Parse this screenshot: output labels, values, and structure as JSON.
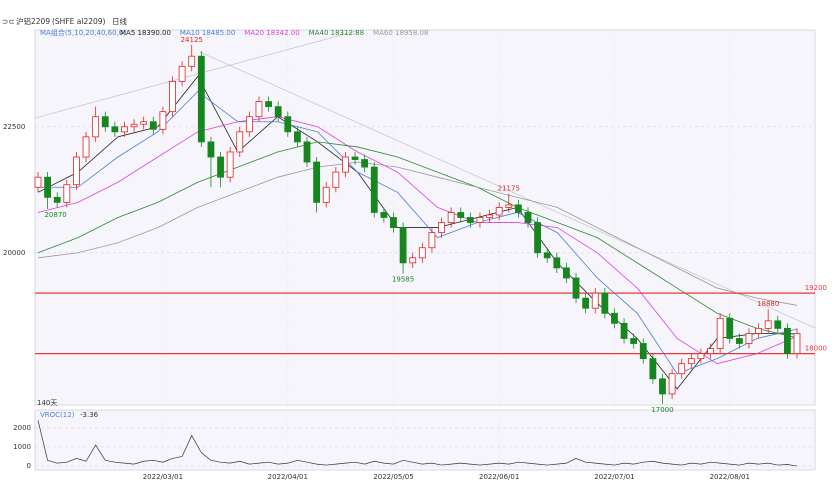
{
  "header": {
    "symbol": "沪铝2209",
    "exchange": "(SHFE al2209)",
    "period": "日线"
  },
  "chart_data": [
    {
      "type": "candlestick",
      "title": "MA组合(5,10,20,40,60,0)",
      "note": "140天",
      "categories": [
        null,
        null,
        null,
        null,
        null,
        null,
        null,
        null,
        null,
        null,
        null,
        null,
        null,
        "2022/03/01",
        null,
        null,
        null,
        null,
        null,
        null,
        null,
        null,
        null,
        null,
        null,
        null,
        "2022/04/01",
        null,
        null,
        null,
        null,
        null,
        null,
        null,
        null,
        null,
        null,
        "2022/05/05",
        null,
        null,
        null,
        null,
        null,
        null,
        null,
        null,
        null,
        null,
        "2022/06/01",
        null,
        null,
        null,
        null,
        null,
        null,
        null,
        null,
        null,
        null,
        null,
        "2022/07/01",
        null,
        null,
        null,
        null,
        null,
        null,
        null,
        null,
        null,
        null,
        null,
        "2022/08/01",
        null,
        null,
        null,
        null,
        null,
        null,
        null
      ],
      "open": [
        21300,
        21500,
        21100,
        21000,
        21350,
        21900,
        22300,
        22700,
        22500,
        22400,
        22500,
        22550,
        22600,
        22450,
        22800,
        23400,
        23700,
        23900,
        22200,
        21900,
        21500,
        22000,
        22400,
        22700,
        23000,
        22900,
        22700,
        22400,
        22200,
        21800,
        21000,
        21300,
        21600,
        21900,
        21850,
        21700,
        20800,
        20700,
        20500,
        19800,
        19900,
        20100,
        20400,
        20600,
        20800,
        20700,
        20600,
        20700,
        20750,
        20900,
        20950,
        20800,
        20600,
        20000,
        19900,
        19700,
        19500,
        19100,
        18900,
        19200,
        18800,
        18600,
        18300,
        18200,
        17900,
        17500,
        17200,
        17600,
        17800,
        17900,
        18000,
        18100,
        18700,
        18300,
        18200,
        18400,
        18500,
        18650,
        18500,
        18000
      ],
      "high": [
        21600,
        21600,
        21200,
        21450,
        22000,
        22400,
        22900,
        22800,
        22600,
        22600,
        22650,
        22700,
        22700,
        22900,
        23500,
        23800,
        24125,
        24000,
        22300,
        22000,
        22100,
        22500,
        22800,
        23100,
        23100,
        23000,
        22800,
        22500,
        22300,
        21900,
        21400,
        21700,
        22000,
        22000,
        21950,
        21800,
        20900,
        20800,
        20600,
        20000,
        20200,
        20500,
        20700,
        20900,
        20900,
        20800,
        20800,
        20850,
        21000,
        21175,
        21050,
        20900,
        20700,
        20100,
        20000,
        19800,
        19600,
        19200,
        19300,
        19300,
        18900,
        18700,
        18400,
        18300,
        18000,
        17600,
        17700,
        17900,
        18000,
        18100,
        18200,
        18800,
        18800,
        18400,
        18500,
        18600,
        18880,
        18750,
        18600,
        18500
      ],
      "low": [
        21200,
        20870,
        20900,
        20900,
        21250,
        21800,
        22200,
        22400,
        22300,
        22300,
        22400,
        22450,
        22350,
        22350,
        22700,
        23300,
        23600,
        22100,
        21300,
        21300,
        21400,
        21900,
        22300,
        22600,
        22800,
        22600,
        22300,
        22100,
        21700,
        20800,
        20900,
        21200,
        21500,
        21750,
        21600,
        20700,
        20600,
        20400,
        19585,
        19700,
        19800,
        20000,
        20300,
        20500,
        20600,
        20500,
        20500,
        20600,
        20650,
        20800,
        20700,
        20500,
        19900,
        19800,
        19600,
        19400,
        19000,
        18800,
        18800,
        18700,
        18500,
        18200,
        18100,
        17800,
        17400,
        17000,
        17100,
        17500,
        17700,
        17800,
        17900,
        18000,
        18200,
        18100,
        18100,
        18300,
        18400,
        18400,
        17900,
        17900
      ],
      "close": [
        21500,
        21100,
        21000,
        21350,
        21900,
        22300,
        22700,
        22500,
        22400,
        22500,
        22550,
        22600,
        22450,
        22800,
        23400,
        23700,
        23900,
        22200,
        21900,
        21500,
        22000,
        22400,
        22700,
        23000,
        22900,
        22700,
        22400,
        22200,
        21800,
        21000,
        21300,
        21600,
        21900,
        21850,
        21700,
        20800,
        20700,
        20500,
        19800,
        19900,
        20100,
        20400,
        20600,
        20800,
        20700,
        20600,
        20700,
        20750,
        20900,
        20950,
        20800,
        20600,
        20000,
        19900,
        19700,
        19500,
        19100,
        18900,
        19200,
        18800,
        18600,
        18300,
        18200,
        17900,
        17500,
        17200,
        17600,
        17800,
        17900,
        18000,
        18100,
        18700,
        18300,
        18200,
        18400,
        18500,
        18650,
        18500,
        18000,
        18400
      ],
      "up_color": "#e02424",
      "down_color": "#17861f",
      "ylim": [
        16980,
        24420
      ],
      "yticks": [
        22500,
        20000
      ],
      "grid": true,
      "hlines": [
        19200,
        18000
      ],
      "hline_color": "#e8383d",
      "ma": [
        {
          "name": "MA5 18390.00",
          "color": "#222222",
          "values": [
            21200,
            21600,
            22300,
            22500,
            23500,
            22000,
            22700,
            22200,
            21600,
            20500,
            20500,
            20700,
            20900,
            19800,
            19000,
            18300,
            17300,
            18300,
            18400,
            18390
          ]
        },
        {
          "name": "MA10 18485.00",
          "color": "#4a7fd4",
          "values": [
            21300,
            21300,
            21900,
            22400,
            23200,
            22600,
            22600,
            22400,
            21600,
            21200,
            20300,
            20600,
            20800,
            20400,
            19500,
            18800,
            17600,
            17900,
            18300,
            18485
          ]
        },
        {
          "name": "MA20 18342.00",
          "color": "#e040e0",
          "values": [
            20800,
            21000,
            21400,
            21900,
            22400,
            22600,
            22700,
            22500,
            22000,
            21600,
            20900,
            20600,
            20600,
            20500,
            20000,
            19300,
            18300,
            17800,
            18000,
            18342
          ]
        },
        {
          "name": "MA40 18312.88",
          "color": "#2e8b2e",
          "values": [
            20000,
            20300,
            20700,
            21000,
            21400,
            21700,
            22000,
            22200,
            22100,
            21900,
            21600,
            21300,
            20900,
            20600,
            20300,
            19800,
            19300,
            18800,
            18500,
            18313
          ]
        },
        {
          "name": "MA60 18958.08",
          "color": "#9a9a9a",
          "values": [
            19900,
            20000,
            20200,
            20500,
            20900,
            21200,
            21500,
            21700,
            21800,
            21700,
            21500,
            21300,
            21100,
            20900,
            20500,
            20100,
            19700,
            19300,
            19100,
            18958
          ]
        }
      ]
    },
    {
      "type": "line",
      "title": "VROC(12)",
      "color": "#333333",
      "values": [
        2400,
        300,
        150,
        200,
        400,
        250,
        1100,
        300,
        200,
        150,
        100,
        250,
        300,
        200,
        400,
        500,
        1600,
        700,
        300,
        200,
        150,
        250,
        100,
        150,
        200,
        100,
        150,
        300,
        200,
        100,
        50,
        100,
        150,
        200,
        100,
        250,
        150,
        100,
        300,
        200,
        100,
        150,
        50,
        100,
        150,
        100,
        50,
        100,
        150,
        100,
        200,
        150,
        100,
        50,
        100,
        150,
        400,
        200,
        150,
        100,
        50,
        150,
        100,
        200,
        250,
        150,
        100,
        50,
        150,
        100,
        200,
        150,
        100,
        50,
        150,
        100,
        150,
        50,
        80,
        -3.36
      ],
      "ylim": [
        -210,
        2840
      ],
      "yticks": [
        0,
        1000,
        2000
      ]
    }
  ]
}
